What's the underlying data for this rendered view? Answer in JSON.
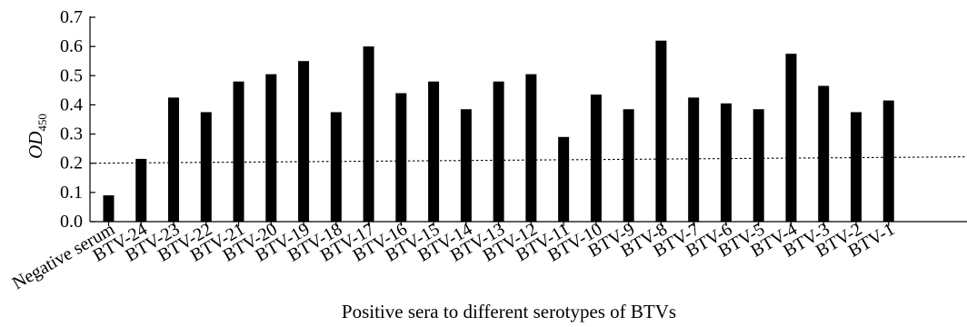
{
  "chart_data": {
    "type": "bar",
    "title": "",
    "xlabel": "Positive sera to different serotypes of BTVs",
    "ylabel": {
      "main": "OD",
      "sub": "450"
    },
    "ylim": [
      0,
      0.7
    ],
    "yticks": [
      "0.0",
      "0.1",
      "0.2",
      "0.3",
      "0.4",
      "0.5",
      "0.6",
      "0.7"
    ],
    "categories": [
      "Negative serum",
      "BTV-24",
      "BTV-23",
      "BTV-22",
      "BTV-21",
      "BTV-20",
      "BTV-19",
      "BTV-18",
      "BTV-17",
      "BTV-16",
      "BTV-15",
      "BTV-14",
      "BTV-13",
      "BTV-12",
      "BTV-11",
      "BTV-10",
      "BTV-9",
      "BTV-8",
      "BTV-7",
      "BTV-6",
      "BTV-5",
      "BTV-4",
      "BTV-3",
      "BTV-2",
      "BTV-1"
    ],
    "values": [
      0.09,
      0.215,
      0.425,
      0.375,
      0.48,
      0.505,
      0.55,
      0.375,
      0.6,
      0.44,
      0.48,
      0.385,
      0.48,
      0.505,
      0.29,
      0.435,
      0.385,
      0.62,
      0.425,
      0.405,
      0.385,
      0.575,
      0.465,
      0.375,
      0.415
    ],
    "cutoff_line": {
      "start": 0.2,
      "end": 0.222,
      "style": "dotted"
    },
    "grid": false,
    "legend": "none",
    "bar_color": "#000000"
  }
}
